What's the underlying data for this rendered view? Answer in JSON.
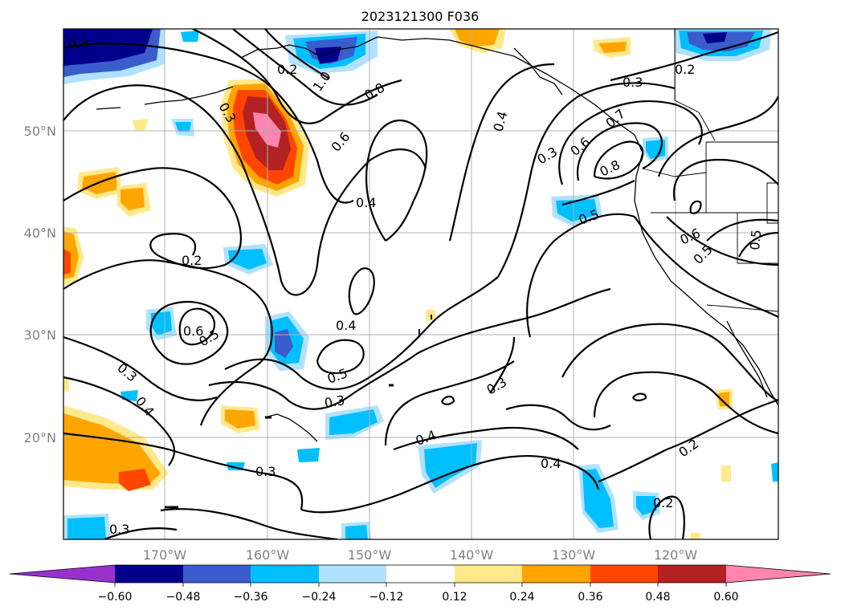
{
  "title": "2023121300 F036",
  "lat_labels": [
    "50°N",
    "40°N",
    "30°N",
    "20°N"
  ],
  "lon_labels": [
    "170°W",
    "160°W",
    "150°W",
    "140°W",
    "130°W",
    "120°W"
  ],
  "colorbar": {
    "ticks": [
      "−0.60",
      "−0.48",
      "−0.36",
      "−0.24",
      "−0.12",
      "0.12",
      "0.24",
      "0.36",
      "0.48",
      "0.60"
    ],
    "colors": [
      "#9932cc",
      "#00008b",
      "#3a5ccc",
      "#00bfff",
      "#b0e2ff",
      "#ffffff",
      "#ffe98a",
      "#ffa500",
      "#ff4500",
      "#b22222",
      "#ff85b0"
    ]
  },
  "contour_labels": [
    "0.3",
    "0.2",
    "1.0",
    "0.8",
    "0.3",
    "0.2",
    "0.3",
    "0.6",
    "0.4",
    "0.4",
    "0.3",
    "0.6",
    "0.7",
    "0.8",
    "0.5",
    "0.6",
    "0.5",
    "0.5",
    "0.2",
    "0.6",
    "0.5",
    "0.4",
    "0.3",
    "0.4",
    "0.5",
    "0.3",
    "0.3",
    "0.4",
    "0.4",
    "0.2",
    "0.3",
    "0.2",
    "0.3"
  ]
}
